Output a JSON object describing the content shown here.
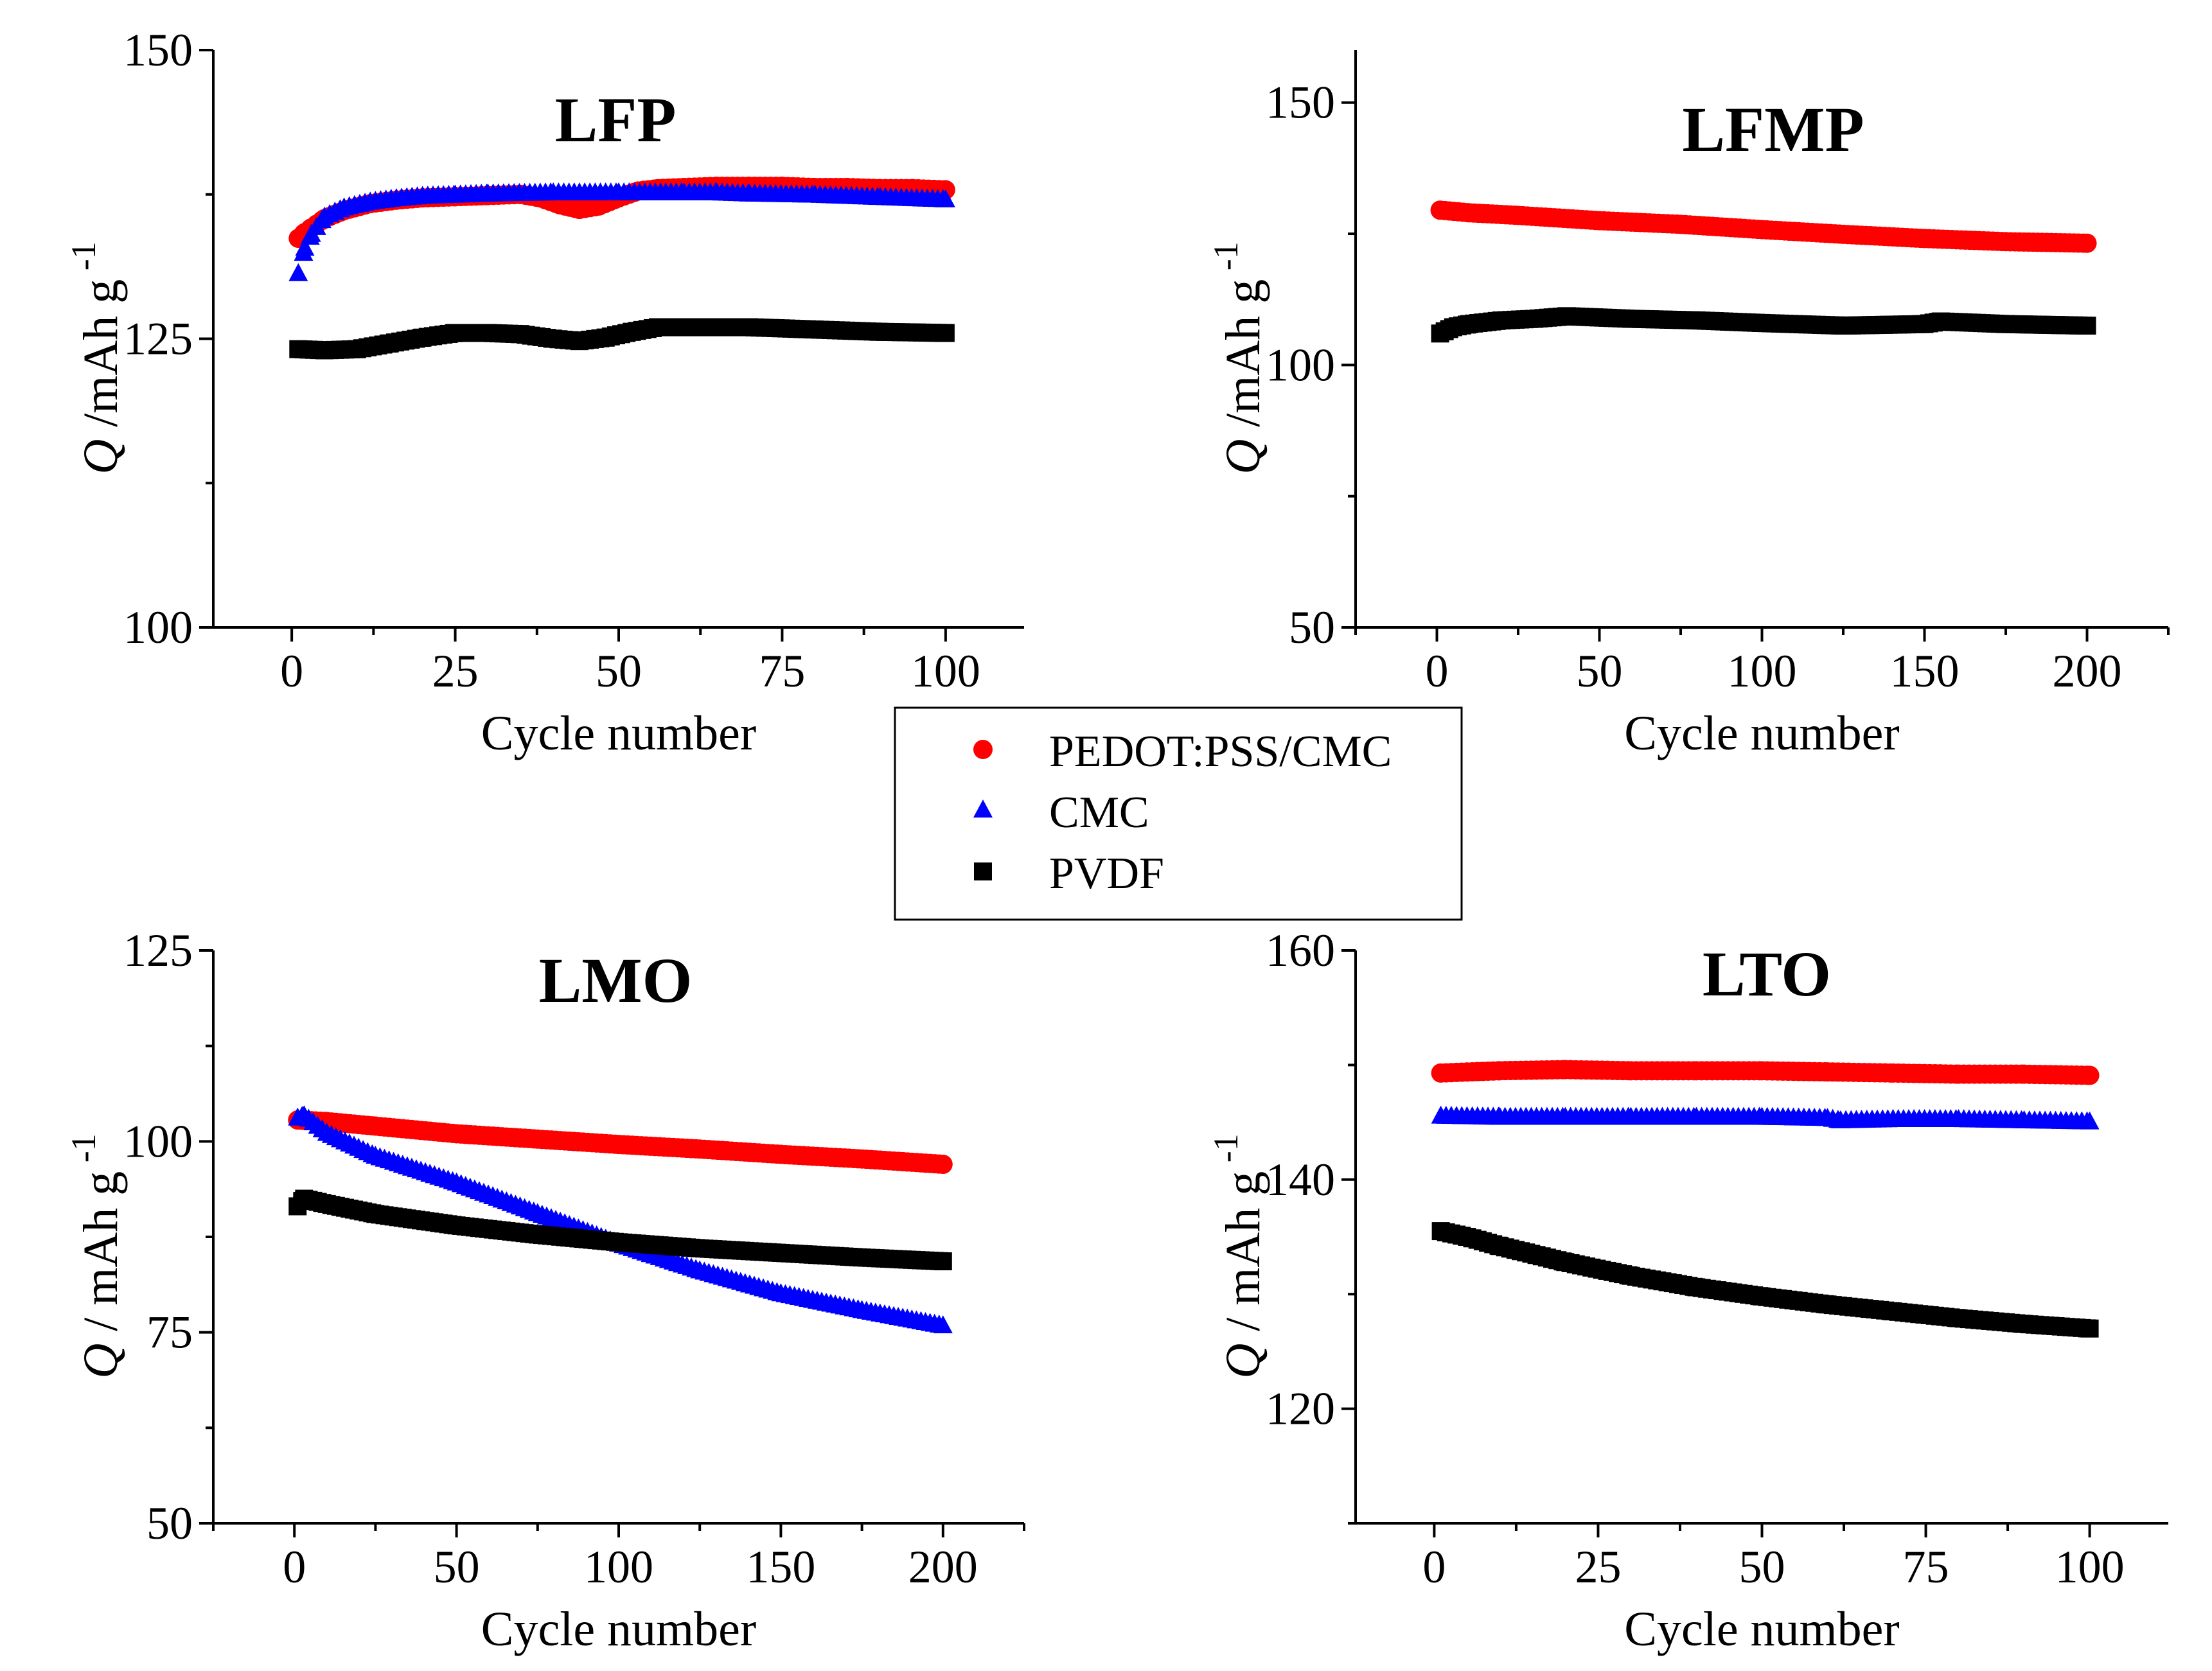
{
  "legend": {
    "series": [
      {
        "name": "PEDOT:PSS/CMC",
        "color": "#ff0000",
        "marker": "circle"
      },
      {
        "name": "CMC",
        "color": "#0000ff",
        "marker": "triangle"
      },
      {
        "name": "PVDF",
        "color": "#000000",
        "marker": "square"
      }
    ]
  },
  "chart_data": [
    {
      "type": "scatter",
      "title": "LFP",
      "xlabel": "Cycle number",
      "ylabel_symbol": "Q",
      "ylabel_unit": " /mAh g",
      "ylabel_sup": "-1",
      "xlim": [
        -12,
        112
      ],
      "ylim": [
        100,
        150
      ],
      "xticks": [
        0,
        25,
        50,
        75,
        100
      ],
      "yticks": [
        100,
        125,
        150
      ],
      "series": [
        {
          "name": "PEDOT:PSS/CMC",
          "x": [
            1,
            2,
            3,
            5,
            8,
            12,
            16,
            20,
            25,
            30,
            35,
            38,
            41,
            44,
            47,
            50,
            53,
            56,
            60,
            65,
            70,
            75,
            80,
            85,
            90,
            95,
            100
          ],
          "y": [
            133.7,
            134.2,
            134.6,
            135.4,
            136.1,
            136.7,
            137.0,
            137.2,
            137.3,
            137.4,
            137.5,
            137.2,
            136.6,
            136.2,
            136.5,
            137.2,
            137.8,
            138.0,
            138.1,
            138.2,
            138.2,
            138.2,
            138.1,
            138.1,
            138.0,
            138.0,
            137.9
          ]
        },
        {
          "name": "CMC",
          "x": [
            1,
            2,
            3,
            5,
            8,
            12,
            16,
            20,
            25,
            30,
            40,
            50,
            60,
            65,
            70,
            80,
            90,
            100
          ],
          "y": [
            130.6,
            132.8,
            134.0,
            135.5,
            136.3,
            136.8,
            137.1,
            137.3,
            137.4,
            137.5,
            137.6,
            137.6,
            137.6,
            137.6,
            137.5,
            137.4,
            137.2,
            137.0
          ]
        },
        {
          "name": "PVDF",
          "x": [
            1,
            5,
            10,
            15,
            20,
            25,
            30,
            35,
            40,
            44,
            48,
            52,
            56,
            60,
            70,
            80,
            90,
            100
          ],
          "y": [
            124.1,
            124.0,
            124.1,
            124.6,
            125.1,
            125.5,
            125.5,
            125.4,
            125.0,
            124.8,
            125.1,
            125.6,
            126.0,
            126.0,
            126.0,
            125.8,
            125.6,
            125.5
          ]
        }
      ]
    },
    {
      "type": "scatter",
      "title": "LFMP",
      "xlabel": "Cycle number",
      "ylabel_symbol": "Q",
      "ylabel_unit": " /mAh g",
      "ylabel_sup": "-1",
      "xlim": [
        -25,
        225
      ],
      "ylim": [
        50,
        160
      ],
      "xticks": [
        0,
        50,
        100,
        150,
        200
      ],
      "yticks": [
        50,
        100,
        150
      ],
      "series": [
        {
          "name": "PEDOT:PSS/CMC",
          "x": [
            1,
            10,
            25,
            50,
            75,
            100,
            125,
            150,
            175,
            200
          ],
          "y": [
            129.5,
            129.0,
            128.5,
            127.5,
            126.8,
            125.8,
            124.9,
            124.1,
            123.5,
            123.2
          ]
        },
        {
          "name": "PVDF",
          "x": [
            1,
            5,
            10,
            20,
            30,
            40,
            60,
            80,
            100,
            125,
            150,
            155,
            175,
            200
          ],
          "y": [
            106.0,
            107.2,
            107.8,
            108.5,
            108.8,
            109.3,
            108.8,
            108.5,
            108.0,
            107.5,
            107.8,
            108.3,
            107.8,
            107.5
          ]
        }
      ]
    },
    {
      "type": "scatter",
      "title": "LMO",
      "xlabel": "Cycle number",
      "ylabel_symbol": "Q",
      "ylabel_unit": " / mAh g",
      "ylabel_sup": "-1",
      "xlim": [
        -25,
        225
      ],
      "ylim": [
        50,
        125
      ],
      "xticks": [
        0,
        50,
        100,
        150,
        200
      ],
      "yticks": [
        50,
        75,
        100,
        125
      ],
      "series": [
        {
          "name": "PEDOT:PSS/CMC",
          "x": [
            1,
            10,
            25,
            50,
            75,
            100,
            125,
            150,
            175,
            200
          ],
          "y": [
            102.8,
            102.6,
            102.0,
            101.0,
            100.3,
            99.6,
            99.0,
            98.3,
            97.7,
            97.0
          ]
        },
        {
          "name": "CMC",
          "x": [
            1,
            3,
            10,
            25,
            50,
            75,
            100,
            125,
            150,
            175,
            200
          ],
          "y": [
            103.0,
            103.3,
            101.0,
            98.0,
            94.5,
            90.5,
            86.5,
            83.0,
            80.0,
            77.8,
            75.8
          ]
        },
        {
          "name": "PVDF",
          "x": [
            1,
            3,
            10,
            25,
            50,
            75,
            100,
            125,
            150,
            175,
            200
          ],
          "y": [
            91.5,
            92.5,
            91.8,
            90.5,
            89.0,
            87.8,
            86.8,
            86.0,
            85.4,
            84.8,
            84.3
          ]
        }
      ]
    },
    {
      "type": "scatter",
      "title": "LTO",
      "xlabel": "Cycle number",
      "ylabel_symbol": "Q",
      "ylabel_unit": " / mAh g",
      "ylabel_sup": "-1",
      "xlim": [
        -12,
        112
      ],
      "ylim": [
        110,
        160
      ],
      "xticks": [
        0,
        25,
        50,
        75,
        100
      ],
      "yticks": [
        120,
        140,
        160
      ],
      "series": [
        {
          "name": "PEDOT:PSS/CMC",
          "x": [
            1,
            10,
            20,
            30,
            40,
            50,
            60,
            70,
            80,
            90,
            100
          ],
          "y": [
            149.3,
            149.5,
            149.6,
            149.5,
            149.5,
            149.5,
            149.4,
            149.3,
            149.2,
            149.2,
            149.1
          ]
        },
        {
          "name": "CMC",
          "x": [
            1,
            10,
            20,
            30,
            40,
            50,
            60,
            62,
            70,
            80,
            90,
            100
          ],
          "y": [
            145.5,
            145.4,
            145.4,
            145.4,
            145.4,
            145.4,
            145.3,
            145.1,
            145.2,
            145.2,
            145.1,
            145.0
          ]
        },
        {
          "name": "PVDF",
          "x": [
            1,
            5,
            10,
            20,
            30,
            40,
            50,
            60,
            70,
            80,
            90,
            100
          ],
          "y": [
            135.5,
            135.0,
            134.2,
            132.8,
            131.6,
            130.6,
            129.8,
            129.1,
            128.5,
            127.9,
            127.4,
            127.0
          ]
        }
      ]
    }
  ]
}
